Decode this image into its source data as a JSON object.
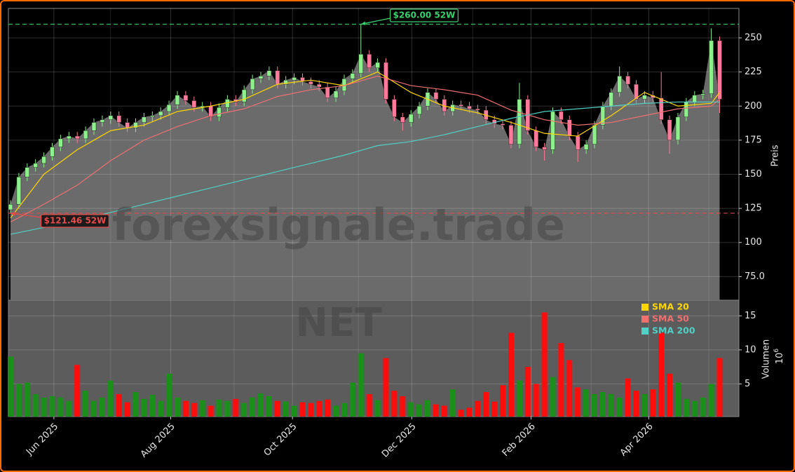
{
  "chart_data": {
    "type": "candlestick",
    "symbol": "NET",
    "watermark": "forexsignale.trade",
    "y_label": "Preis",
    "ylim": [
      57.7,
      271.6
    ],
    "yticks": [
      {
        "value": 75,
        "label": "75.0"
      },
      100,
      125,
      150,
      175,
      200,
      225,
      250
    ],
    "xticks": [
      {
        "value": 5.2,
        "label": "Jun 2025"
      },
      {
        "value": 19.2,
        "label": "Aug 2025"
      },
      {
        "value": 33.8,
        "label": "Oct 2025"
      },
      {
        "value": 48.1,
        "label": "Dec 2025"
      },
      {
        "value": 62.4,
        "label": "Feb 2026"
      },
      {
        "value": 76.5,
        "label": "Apr 2026"
      }
    ],
    "minor_xticks": [
      12,
      26.8,
      41.7,
      55.4,
      69.6,
      83.7
    ],
    "grid": true,
    "up_color": "#8df08d",
    "down_color": "#ff7a9a",
    "area_color": "#6b6b6b",
    "open": [
      124,
      128,
      148,
      155,
      158,
      163,
      170,
      176,
      178,
      176,
      182,
      188,
      190,
      193,
      188,
      184,
      188,
      192,
      193,
      196,
      201,
      208,
      204,
      199,
      200,
      192,
      199,
      205,
      203,
      212,
      220,
      222,
      226,
      216,
      219,
      221,
      218,
      216,
      214,
      206,
      211,
      220,
      224,
      238,
      228,
      232,
      205,
      192,
      188,
      194,
      200,
      210,
      205,
      196,
      201,
      200,
      198,
      197,
      190,
      187,
      186,
      172,
      205,
      182,
      170,
      168,
      196,
      190,
      178,
      168,
      172,
      186,
      200,
      210,
      222,
      216,
      205,
      208,
      206,
      190,
      175,
      192,
      203,
      208,
      209,
      248
    ],
    "high": [
      131,
      151,
      158,
      161,
      166,
      173,
      179,
      181,
      181,
      185,
      191,
      193,
      196,
      196,
      191,
      191,
      195,
      196,
      199,
      204,
      211,
      211,
      207,
      203,
      203,
      202,
      208,
      208,
      215,
      223,
      225,
      229,
      229,
      222,
      224,
      224,
      221,
      219,
      217,
      214,
      223,
      227,
      260,
      241,
      235,
      235,
      208,
      195,
      197,
      203,
      213,
      213,
      208,
      204,
      204,
      203,
      201,
      200,
      193,
      190,
      189,
      217,
      208,
      185,
      173,
      199,
      199,
      193,
      181,
      175,
      189,
      203,
      213,
      229,
      225,
      219,
      211,
      211,
      225,
      193,
      195,
      206,
      211,
      212,
      257,
      251
    ],
    "low": [
      121.46,
      125,
      145,
      152,
      155,
      160,
      167,
      173,
      173,
      173,
      179,
      185,
      187,
      185,
      181,
      181,
      185,
      189,
      190,
      193,
      198,
      201,
      196,
      196,
      189,
      189,
      196,
      200,
      200,
      209,
      217,
      219,
      213,
      213,
      216,
      215,
      213,
      211,
      203,
      203,
      208,
      217,
      221,
      225,
      225,
      202,
      189,
      182,
      185,
      191,
      197,
      202,
      193,
      193,
      197,
      195,
      194,
      187,
      184,
      183,
      169,
      169,
      179,
      167,
      160,
      165,
      187,
      175,
      159,
      165,
      169,
      183,
      197,
      207,
      213,
      202,
      202,
      203,
      187,
      165,
      172,
      189,
      200,
      205,
      206,
      195
    ],
    "close": [
      128,
      148,
      155,
      158,
      163,
      170,
      176,
      178,
      176,
      182,
      188,
      190,
      193,
      188,
      184,
      188,
      192,
      193,
      196,
      201,
      208,
      204,
      199,
      200,
      192,
      199,
      205,
      203,
      212,
      220,
      222,
      226,
      216,
      219,
      221,
      218,
      216,
      214,
      206,
      211,
      220,
      224,
      238,
      228,
      232,
      205,
      192,
      188,
      194,
      200,
      210,
      205,
      196,
      201,
      200,
      198,
      197,
      190,
      187,
      186,
      172,
      205,
      182,
      170,
      168,
      196,
      190,
      178,
      168,
      172,
      186,
      200,
      210,
      222,
      216,
      205,
      208,
      206,
      190,
      175,
      192,
      203,
      208,
      209,
      248,
      205
    ],
    "sma": [
      {
        "name": "SMA 20",
        "color": "#ffd700",
        "x": [
          0,
          4,
          8,
          12,
          16,
          20,
          24,
          28,
          32,
          36,
          40,
          44,
          48,
          52,
          56,
          60,
          64,
          68,
          72,
          76,
          80,
          84,
          85
        ],
        "values": [
          118,
          150,
          168,
          182,
          186,
          196,
          200,
          205,
          216,
          219,
          215,
          225,
          210,
          200,
          195,
          188,
          180,
          178,
          193,
          210,
          200,
          202,
          210
        ]
      },
      {
        "name": "SMA 50",
        "color": "#f07070",
        "x": [
          0,
          4,
          8,
          12,
          16,
          20,
          24,
          28,
          32,
          36,
          40,
          44,
          48,
          52,
          56,
          60,
          64,
          68,
          72,
          76,
          80,
          84,
          85
        ],
        "values": [
          115,
          128,
          142,
          160,
          175,
          185,
          193,
          198,
          207,
          212,
          215,
          222,
          215,
          212,
          208,
          197,
          190,
          186,
          188,
          193,
          198,
          200,
          205
        ]
      },
      {
        "name": "SMA 200",
        "color": "#4fd1c5",
        "x": [
          0,
          4,
          8,
          12,
          16,
          20,
          24,
          28,
          32,
          36,
          40,
          44,
          48,
          52,
          56,
          60,
          64,
          68,
          72,
          76,
          80,
          84,
          85
        ],
        "values": [
          106,
          111,
          116,
          122,
          128,
          134,
          140,
          146,
          152,
          158,
          164,
          171,
          174,
          179,
          185,
          191,
          196,
          198,
          200,
          202,
          203,
          203,
          203
        ]
      }
    ],
    "legend": "upper right",
    "annotations": [
      {
        "value": 260,
        "label": "$260.00 52W",
        "color": "#3ccf6e"
      },
      {
        "value": 121.46,
        "label": "$121.46 52W",
        "color": "#e84a4a"
      }
    ],
    "volume": {
      "y_label": "Volumen",
      "unit_base": "10",
      "unit_exp": "6",
      "ylim": [
        0.2,
        17.3
      ],
      "yticks": [
        5,
        10,
        15
      ],
      "up_color": "#1a8f1a",
      "down_color": "#ff0d0d",
      "values": [
        9,
        5,
        5.2,
        3.5,
        3,
        3.2,
        3,
        2.5,
        7.8,
        4,
        2.5,
        3,
        5.5,
        3.5,
        2.3,
        3.8,
        2.8,
        3.4,
        2.5,
        6.5,
        3,
        2.5,
        2.2,
        2.6,
        1.8,
        2.7,
        2.5,
        2.8,
        2.2,
        3,
        3.6,
        3.2,
        2.5,
        2.4,
        1.8,
        2.3,
        2.2,
        2.5,
        2.7,
        1.8,
        2.2,
        5.2,
        9.5,
        3.5,
        2.6,
        8.8,
        4,
        3.2,
        2.3,
        2,
        2.6,
        2,
        1.8,
        4.2,
        1.2,
        1.5,
        2.5,
        3.8,
        2.4,
        4.8,
        12.5,
        5.5,
        7.5,
        5,
        15.5,
        6,
        11,
        8.5,
        4.5,
        4.2,
        3.5,
        3.8,
        3.5,
        3,
        5.8,
        4,
        3.5,
        4.2,
        12.5,
        6.5,
        5.2,
        2.8,
        2.5,
        3,
        5,
        8.8
      ]
    }
  }
}
